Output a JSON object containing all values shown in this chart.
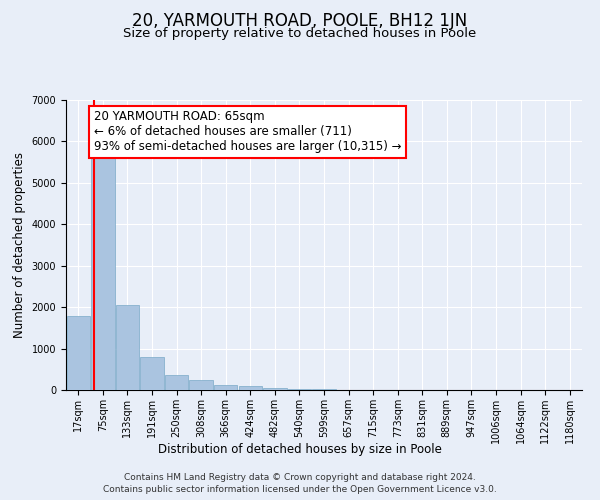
{
  "title": "20, YARMOUTH ROAD, POOLE, BH12 1JN",
  "subtitle": "Size of property relative to detached houses in Poole",
  "xlabel": "Distribution of detached houses by size in Poole",
  "ylabel": "Number of detached properties",
  "bar_labels": [
    "17sqm",
    "75sqm",
    "133sqm",
    "191sqm",
    "250sqm",
    "308sqm",
    "366sqm",
    "424sqm",
    "482sqm",
    "540sqm",
    "599sqm",
    "657sqm",
    "715sqm",
    "773sqm",
    "831sqm",
    "889sqm",
    "947sqm",
    "1006sqm",
    "1064sqm",
    "1122sqm",
    "1180sqm"
  ],
  "bar_values": [
    1780,
    5750,
    2060,
    800,
    370,
    230,
    115,
    90,
    50,
    30,
    15,
    10,
    5,
    0,
    0,
    0,
    0,
    0,
    0,
    0,
    0
  ],
  "bar_color": "#aac4e0",
  "bar_edgecolor": "#7aaac8",
  "property_line_color": "red",
  "annotation_text": "20 YARMOUTH ROAD: 65sqm\n← 6% of detached houses are smaller (711)\n93% of semi-detached houses are larger (10,315) →",
  "annotation_box_color": "white",
  "annotation_box_edgecolor": "red",
  "ylim": [
    0,
    7000
  ],
  "yticks": [
    0,
    1000,
    2000,
    3000,
    4000,
    5000,
    6000,
    7000
  ],
  "bg_color": "#e8eef8",
  "plot_bg_color": "#e8eef8",
  "footer_line1": "Contains HM Land Registry data © Crown copyright and database right 2024.",
  "footer_line2": "Contains public sector information licensed under the Open Government Licence v3.0.",
  "title_fontsize": 12,
  "subtitle_fontsize": 9.5,
  "axis_label_fontsize": 8.5,
  "tick_fontsize": 7,
  "annotation_fontsize": 8.5,
  "footer_fontsize": 6.5
}
